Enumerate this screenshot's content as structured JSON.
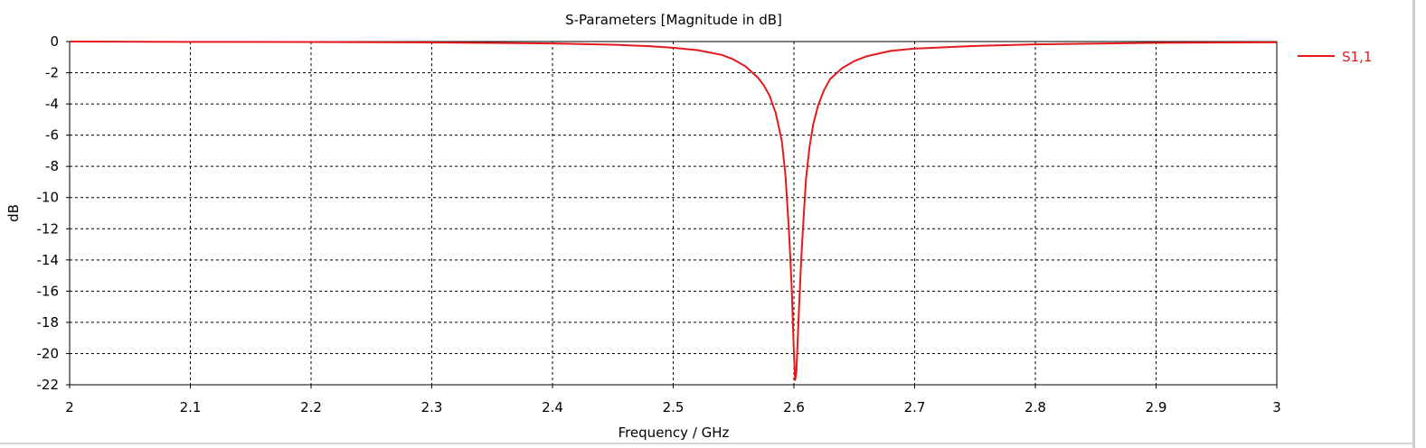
{
  "chart_data": {
    "type": "line",
    "title": "S-Parameters [Magnitude in dB]",
    "xlabel": "Frequency / GHz",
    "ylabel": "dB",
    "xlim": [
      2,
      3
    ],
    "ylim": [
      -22,
      0
    ],
    "x_ticks": [
      2,
      2.1,
      2.2,
      2.3,
      2.4,
      2.5,
      2.6,
      2.7,
      2.8,
      2.9,
      3
    ],
    "x_tick_labels": [
      "2",
      "2.1",
      "2.2",
      "2.3",
      "2.4",
      "2.5",
      "2.6",
      "2.7",
      "2.8",
      "2.9",
      "3"
    ],
    "y_ticks": [
      0,
      -2,
      -4,
      -6,
      -8,
      -10,
      -12,
      -14,
      -16,
      -18,
      -20,
      -22
    ],
    "y_tick_labels": [
      "0",
      "-2",
      "-4",
      "-6",
      "-8",
      "-10",
      "-12",
      "-14",
      "-16",
      "-18",
      "-20",
      "-22"
    ],
    "grid": true,
    "legend_position": "right",
    "series": [
      {
        "name": "S1,1",
        "color": "#e31a1c",
        "x": [
          2.0,
          2.1,
          2.2,
          2.3,
          2.35,
          2.4,
          2.45,
          2.48,
          2.5,
          2.52,
          2.54,
          2.55,
          2.56,
          2.57,
          2.575,
          2.58,
          2.585,
          2.59,
          2.593,
          2.596,
          2.598,
          2.6,
          2.601,
          2.602,
          2.604,
          2.606,
          2.608,
          2.61,
          2.613,
          2.616,
          2.62,
          2.625,
          2.63,
          2.64,
          2.65,
          2.66,
          2.68,
          2.7,
          2.75,
          2.8,
          2.9,
          3.0
        ],
        "y": [
          0.0,
          -0.02,
          -0.03,
          -0.06,
          -0.09,
          -0.12,
          -0.2,
          -0.3,
          -0.4,
          -0.55,
          -0.85,
          -1.15,
          -1.6,
          -2.3,
          -2.8,
          -3.5,
          -4.6,
          -6.4,
          -8.6,
          -12.3,
          -15.5,
          -20.0,
          -21.7,
          -21.2,
          -17.5,
          -14.0,
          -11.3,
          -8.8,
          -6.7,
          -5.3,
          -4.1,
          -3.1,
          -2.4,
          -1.7,
          -1.25,
          -0.95,
          -0.6,
          -0.45,
          -0.28,
          -0.18,
          -0.08,
          -0.05
        ]
      }
    ]
  }
}
